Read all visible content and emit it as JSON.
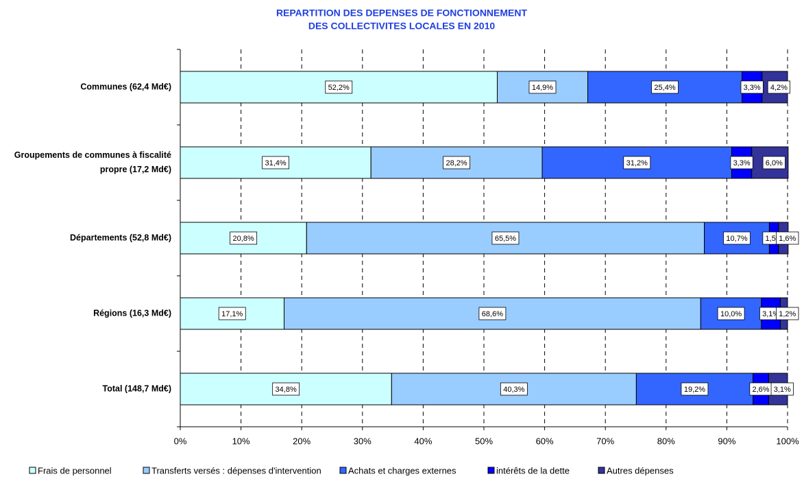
{
  "chart_data": {
    "type": "stacked_hbar",
    "title_lines": [
      "REPARTITION DES DEPENSES DE FONCTIONNEMENT",
      "DES COLLECTIVITES LOCALES EN 2010"
    ],
    "categories": [
      "Communes (62,4 Md€)",
      "Groupements de communes à fiscalité propre (17,2 Md€)",
      "Départements (52,8 Md€)",
      "Régions (16,3 Md€)",
      "Total (148,7 Md€)"
    ],
    "series": [
      {
        "name": "Frais de personnel",
        "color": "#ccffff",
        "values": [
          52.2,
          31.4,
          20.8,
          17.1,
          34.8
        ],
        "value_labels": [
          "52,2%",
          "31,4%",
          "20,8%",
          "17,1%",
          "34,8%"
        ]
      },
      {
        "name": "Transferts versés : dépenses d'intervention",
        "color": "#99ccff",
        "values": [
          14.9,
          28.2,
          65.5,
          68.6,
          40.3
        ],
        "value_labels": [
          "14,9%",
          "28,2%",
          "65,5%",
          "68,6%",
          "40,3%"
        ]
      },
      {
        "name": "Achats et charges externes",
        "color": "#3366ff",
        "values": [
          25.4,
          31.2,
          10.7,
          10.0,
          19.2
        ],
        "value_labels": [
          "25,4%",
          "31,2%",
          "10,7%",
          "10,0%",
          "19,2%"
        ]
      },
      {
        "name": "intérêts de la dette",
        "color": "#0000ff",
        "values": [
          3.3,
          3.3,
          1.5,
          3.1,
          2.6
        ],
        "value_labels": [
          "3,3%",
          "3,3%",
          "1,5%",
          "3,1%",
          "2,6%"
        ]
      },
      {
        "name": "Autres dépenses",
        "color": "#333399",
        "values": [
          4.2,
          6.0,
          1.6,
          1.2,
          3.1
        ],
        "value_labels": [
          "4,2%",
          "6,0%",
          "1,6%",
          "1,2%",
          "3,1%"
        ]
      }
    ],
    "xlim": [
      0,
      100
    ],
    "xticks": [
      {
        "value": 0,
        "label": "0%"
      },
      {
        "value": 10,
        "label": "10%"
      },
      {
        "value": 20,
        "label": "20%"
      },
      {
        "value": 30,
        "label": "30%"
      },
      {
        "value": 40,
        "label": "40%"
      },
      {
        "value": 50,
        "label": "50%"
      },
      {
        "value": 60,
        "label": "60%"
      },
      {
        "value": 70,
        "label": "70%"
      },
      {
        "value": 80,
        "label": "80%"
      },
      {
        "value": 90,
        "label": "90%"
      },
      {
        "value": 100,
        "label": "100%"
      }
    ],
    "grid": true,
    "legend": "bottom"
  }
}
